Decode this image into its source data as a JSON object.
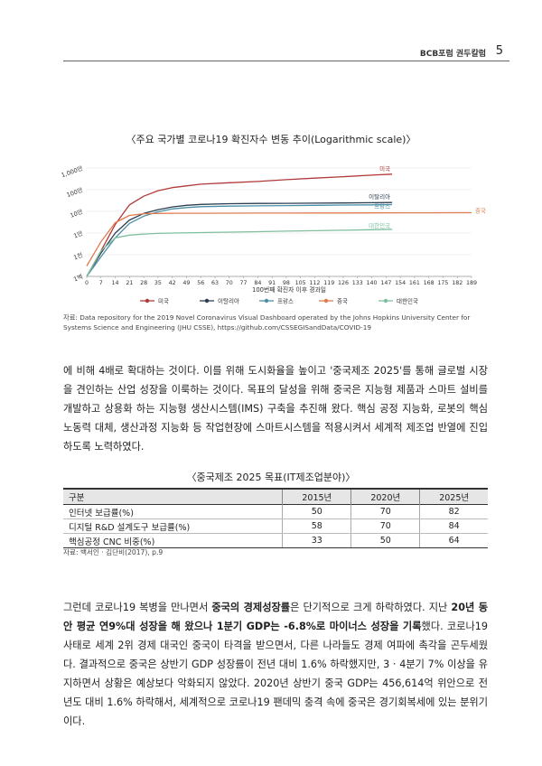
{
  "header": {
    "publication": "BCB포럼 권두칼럼",
    "page_number": "5"
  },
  "chart_title": "〈주요 국가별 코로나19 확진자수 변동 추이(Logarithmic scale)〉",
  "chart_data": {
    "type": "line",
    "xlabel": "100번째 확진자 이후 경과일",
    "ylabel": "",
    "yscale": "log",
    "y_tick_labels": [
      "1,000만",
      "100만",
      "10만",
      "1만",
      "1천",
      "1백"
    ],
    "y_tick_values": [
      10000000,
      1000000,
      100000,
      10000,
      1000,
      100
    ],
    "ylim": [
      100,
      10000000
    ],
    "x_ticks": [
      0,
      7,
      14,
      21,
      28,
      35,
      42,
      49,
      56,
      63,
      70,
      77,
      84,
      91,
      98,
      105,
      112,
      119,
      126,
      133,
      140,
      147,
      154,
      161,
      168,
      175,
      182,
      189
    ],
    "xlim": [
      0,
      189
    ],
    "legend_position": "bottom",
    "series": [
      {
        "name": "미국",
        "color": "#b03a3a",
        "x": [
          0,
          7,
          14,
          21,
          28,
          35,
          42,
          49,
          56,
          70,
          84,
          98,
          112,
          126,
          140,
          150
        ],
        "y": [
          100,
          1500,
          25000,
          200000,
          500000,
          900000,
          1250000,
          1500000,
          1800000,
          2100000,
          2400000,
          2900000,
          3400000,
          4000000,
          4700000,
          5200000
        ]
      },
      {
        "name": "이탈리아",
        "color": "#2c3e50",
        "x": [
          0,
          7,
          14,
          21,
          28,
          35,
          42,
          49,
          56,
          70,
          84,
          98,
          112,
          126,
          140,
          150
        ],
        "y": [
          100,
          1200,
          10000,
          40000,
          80000,
          120000,
          160000,
          190000,
          210000,
          225000,
          232000,
          236000,
          240000,
          245000,
          250000,
          255000
        ]
      },
      {
        "name": "프랑스",
        "color": "#4a8fa8",
        "x": [
          0,
          7,
          14,
          21,
          28,
          35,
          42,
          49,
          56,
          70,
          84,
          98,
          112,
          126,
          140,
          150
        ],
        "y": [
          100,
          800,
          6000,
          28000,
          60000,
          95000,
          130000,
          150000,
          165000,
          175000,
          180000,
          185000,
          190000,
          195000,
          200000,
          205000
        ]
      },
      {
        "name": "중국",
        "color": "#e07b50",
        "x": [
          0,
          7,
          14,
          21,
          28,
          35,
          42,
          56,
          70,
          84,
          98,
          112,
          126,
          140,
          154,
          168,
          182,
          189
        ],
        "y": [
          300,
          4000,
          30000,
          65000,
          78000,
          80500,
          81500,
          82000,
          82500,
          83000,
          83500,
          84000,
          84500,
          85000,
          85500,
          86000,
          86500,
          87000
        ]
      },
      {
        "name": "대한민국",
        "color": "#7fbf9f",
        "x": [
          0,
          7,
          14,
          21,
          28,
          35,
          42,
          56,
          70,
          84,
          98,
          112,
          126,
          140,
          150
        ],
        "y": [
          100,
          1500,
          6000,
          8000,
          9000,
          9600,
          10000,
          10500,
          11000,
          11600,
          12200,
          12800,
          13500,
          14200,
          15000
        ]
      }
    ]
  },
  "chart_source": "자료: Data repository for the 2019 Novel Coronavirus Visual Dashboard operated by the Johns Hopkins University Center for Systems Science and Engineering (JHU CSSE), https://github.com/CSSEGISandData/COVID-19",
  "para1": "에 비해 4배로 확대하는 것이다. 이를 위해 도시화율을 높이고 '중국제조 2025'를 통해 글로벌 시장을 견인하는 산업 성장을 이룩하는 것이다. 목표의 달성을 위해 중국은 지능형 제품과 스마트 설비를 개발하고 상용화 하는 지능형 생산시스템(IMS) 구축을 추진해 왔다. 핵심 공정 지능화, 로봇의 핵심 노동력 대체, 생산과정 지능화 등 작업현장에 스마트시스템을 적용시켜서 세계적 제조업 반열에 진입하도록 노력하였다.",
  "table_title": "〈중국제조 2025 목표(IT제조업분야)〉",
  "table": {
    "headers": [
      "구분",
      "2015년",
      "2020년",
      "2025년"
    ],
    "rows": [
      [
        "인터넷 보급률(%)",
        "50",
        "70",
        "82"
      ],
      [
        "디지털 R&D 설계도구 보급률(%)",
        "58",
        "70",
        "84"
      ],
      [
        "핵심공정 CNC 비중(%)",
        "33",
        "50",
        "64"
      ]
    ]
  },
  "table_source": "자료: 백서인 · 김단비(2017), p.9",
  "para2": {
    "s1": "그런데 코로나19 복병을 만나면서 ",
    "b1": "중국의 경제성장률",
    "s2": "은 단기적으로 크게 하락하였다. 지난 ",
    "b2": "20년 동안 평균 연9%대 성장을 해 왔으나 1분기 GDP는 -6.8%로 마이너스 성장을 기록",
    "s3": "했다. 코로나19 사태로 세계 2위 경제 대국인 중국이 타격을 받으면서, 다른 나라들도 경제 여파에 촉각을 곤두세웠다. 결과적으로 중국은 상반기 GDP 성장률이 전년 대비 1.6% 하락했지만, 3 · 4분기 7% 이상을 유지하면서 상황은 예상보다 악화되지 않았다. 2020년 상반기 중국 GDP는 456,614억 위안으로 전년도 대비 1.6% 하락해서, 세계적으로 코로나19 팬데믹 충격 속에 중국은 경기회복세에 있는 분위기이다."
  }
}
